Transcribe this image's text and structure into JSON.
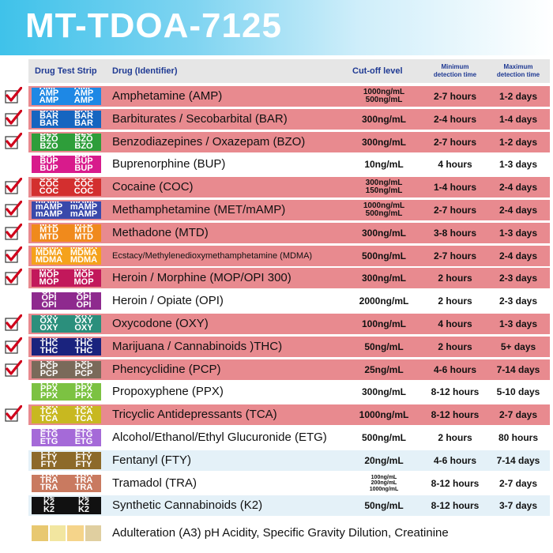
{
  "title": "MT-TDOA-7125",
  "headers": {
    "strip": "Drug Test Strip",
    "drug": "Drug (Identifier)",
    "cutoff": "Cut-off level",
    "min": [
      "Minimum",
      "detection time"
    ],
    "max": [
      "Maximum",
      "detection time"
    ]
  },
  "rows": [
    {
      "strip": "AMP",
      "strip_color": "#1e88e5",
      "drug": "Amphetamine (AMP)",
      "cutoff": [
        "1000ng/mL",
        "500ng/mL"
      ],
      "min": "2-7 hours",
      "max": "1-2 days",
      "checked": true,
      "bg": "red"
    },
    {
      "strip": "BAR",
      "strip_color": "#1565c0",
      "drug": "Barbiturates / Secobarbital (BAR)",
      "cutoff": [
        "300ng/mL"
      ],
      "min": "2-4 hours",
      "max": "1-4 days",
      "checked": true,
      "bg": "red"
    },
    {
      "strip": "BZO",
      "strip_color": "#2e9e3a",
      "drug": "Benzodiazepines / Oxazepam (BZO)",
      "cutoff": [
        "300ng/mL"
      ],
      "min": "2-7 hours",
      "max": "1-2 days",
      "checked": true,
      "bg": "red"
    },
    {
      "strip": "BUP",
      "strip_color": "#d81b8c",
      "drug": "Buprenorphine (BUP)",
      "cutoff": [
        "10ng/mL"
      ],
      "min": "4 hours",
      "max": "1-3 days",
      "checked": false,
      "bg": "white"
    },
    {
      "strip": "COC",
      "strip_color": "#d32f2f",
      "drug": "Cocaine (COC)",
      "cutoff": [
        "300ng/mL",
        "150ng/mL"
      ],
      "min": "1-4 hours",
      "max": "2-4 days",
      "checked": true,
      "bg": "red"
    },
    {
      "strip": "mAMP",
      "strip_color": "#3949ab",
      "drug": "Methamphetamine (MET/mAMP)",
      "cutoff": [
        "1000ng/mL",
        "500ng/mL"
      ],
      "min": "2-7 hours",
      "max": "2-4 days",
      "checked": true,
      "bg": "red"
    },
    {
      "strip": "MTD",
      "strip_color": "#f08a1c",
      "drug": "Methadone (MTD)",
      "cutoff": [
        "300ng/mL"
      ],
      "min": "3-8 hours",
      "max": "1-3 days",
      "checked": true,
      "bg": "red"
    },
    {
      "strip": "MDMA",
      "strip_color": "#f5a21b",
      "drug": "Ecstacy/Methylenedioxymethamphetamine (MDMA)",
      "cutoff": [
        "500ng/mL"
      ],
      "min": "2-7 hours",
      "max": "2-4 days",
      "checked": true,
      "bg": "red"
    },
    {
      "strip": "MOP",
      "strip_color": "#c2185b",
      "drug": "Heroin / Morphine (MOP/OPI 300)",
      "cutoff": [
        "300ng/mL"
      ],
      "min": "2 hours",
      "max": "2-3 days",
      "checked": true,
      "bg": "red"
    },
    {
      "strip": "OPI",
      "strip_color": "#8e2a8e",
      "drug": "Heroin / Opiate (OPI)",
      "cutoff": [
        "2000ng/mL"
      ],
      "min": "2 hours",
      "max": "2-3 days",
      "checked": false,
      "bg": "white"
    },
    {
      "strip": "OXY",
      "strip_color": "#2b8f7c",
      "drug": "Oxycodone (OXY)",
      "cutoff": [
        "100ng/mL"
      ],
      "min": "4 hours",
      "max": "1-3 days",
      "checked": true,
      "bg": "red"
    },
    {
      "strip": "THC",
      "strip_color": "#1a237e",
      "drug": "Marijuana / Cannabinoids )THC)",
      "cutoff": [
        "50ng/mL"
      ],
      "min": "2 hours",
      "max": "5+ days",
      "checked": true,
      "bg": "red"
    },
    {
      "strip": "PCP",
      "strip_color": "#7a6a5a",
      "drug": "Phencyclidine (PCP)",
      "cutoff": [
        "25ng/mL"
      ],
      "min": "4-6 hours",
      "max": "7-14 days",
      "checked": true,
      "bg": "red"
    },
    {
      "strip": "PPX",
      "strip_color": "#7cc242",
      "drug": "Propoxyphene (PPX)",
      "cutoff": [
        "300ng/mL"
      ],
      "min": "8-12 hours",
      "max": "5-10 days",
      "checked": false,
      "bg": "white"
    },
    {
      "strip": "TCA",
      "strip_color": "#c8b820",
      "drug": "Tricyclic Antidepressants (TCA)",
      "cutoff": [
        "1000ng/mL"
      ],
      "min": "8-12 hours",
      "max": "2-7 days",
      "checked": true,
      "bg": "red"
    },
    {
      "strip": "ETG",
      "strip_color": "#a56ad8",
      "drug": "Alcohol/Ethanol/Ethyl Glucuronide (ETG)",
      "cutoff": [
        "500ng/mL"
      ],
      "min": "2 hours",
      "max": "80 hours",
      "checked": false,
      "bg": "white"
    },
    {
      "strip": "FTY",
      "strip_color": "#8d6a2a",
      "drug": "Fentanyl (FTY)",
      "cutoff": [
        "20ng/mL"
      ],
      "min": "4-6 hours",
      "max": "7-14 days",
      "checked": false,
      "bg": "blue"
    },
    {
      "strip": "TRA",
      "strip_color": "#c97a60",
      "drug": "Tramadol (TRA)",
      "cutoff": [
        "100ng/mL",
        "200ng/mL",
        "1000ng/mL"
      ],
      "min": "8-12 hours",
      "max": "2-7 days",
      "checked": false,
      "bg": "white"
    },
    {
      "strip": "K2",
      "strip_color": "#111111",
      "drug": "Synthetic Cannabinoids (K2)",
      "cutoff": [
        "50ng/mL"
      ],
      "min": "8-12 hours",
      "max": "3-7 days",
      "checked": false,
      "bg": "blue"
    }
  ],
  "adulteration": {
    "label": "Adulteration (A3) pH Acidity, Specific Gravity Dilution, Creatinine",
    "strip_colors": [
      "#e8c870",
      "#f2e6a0",
      "#f5d48a",
      "#e0cfa0"
    ]
  },
  "colors": {
    "accent": "#3fc2ea",
    "header_text": "#1f3a93",
    "check": "#d0021b"
  }
}
